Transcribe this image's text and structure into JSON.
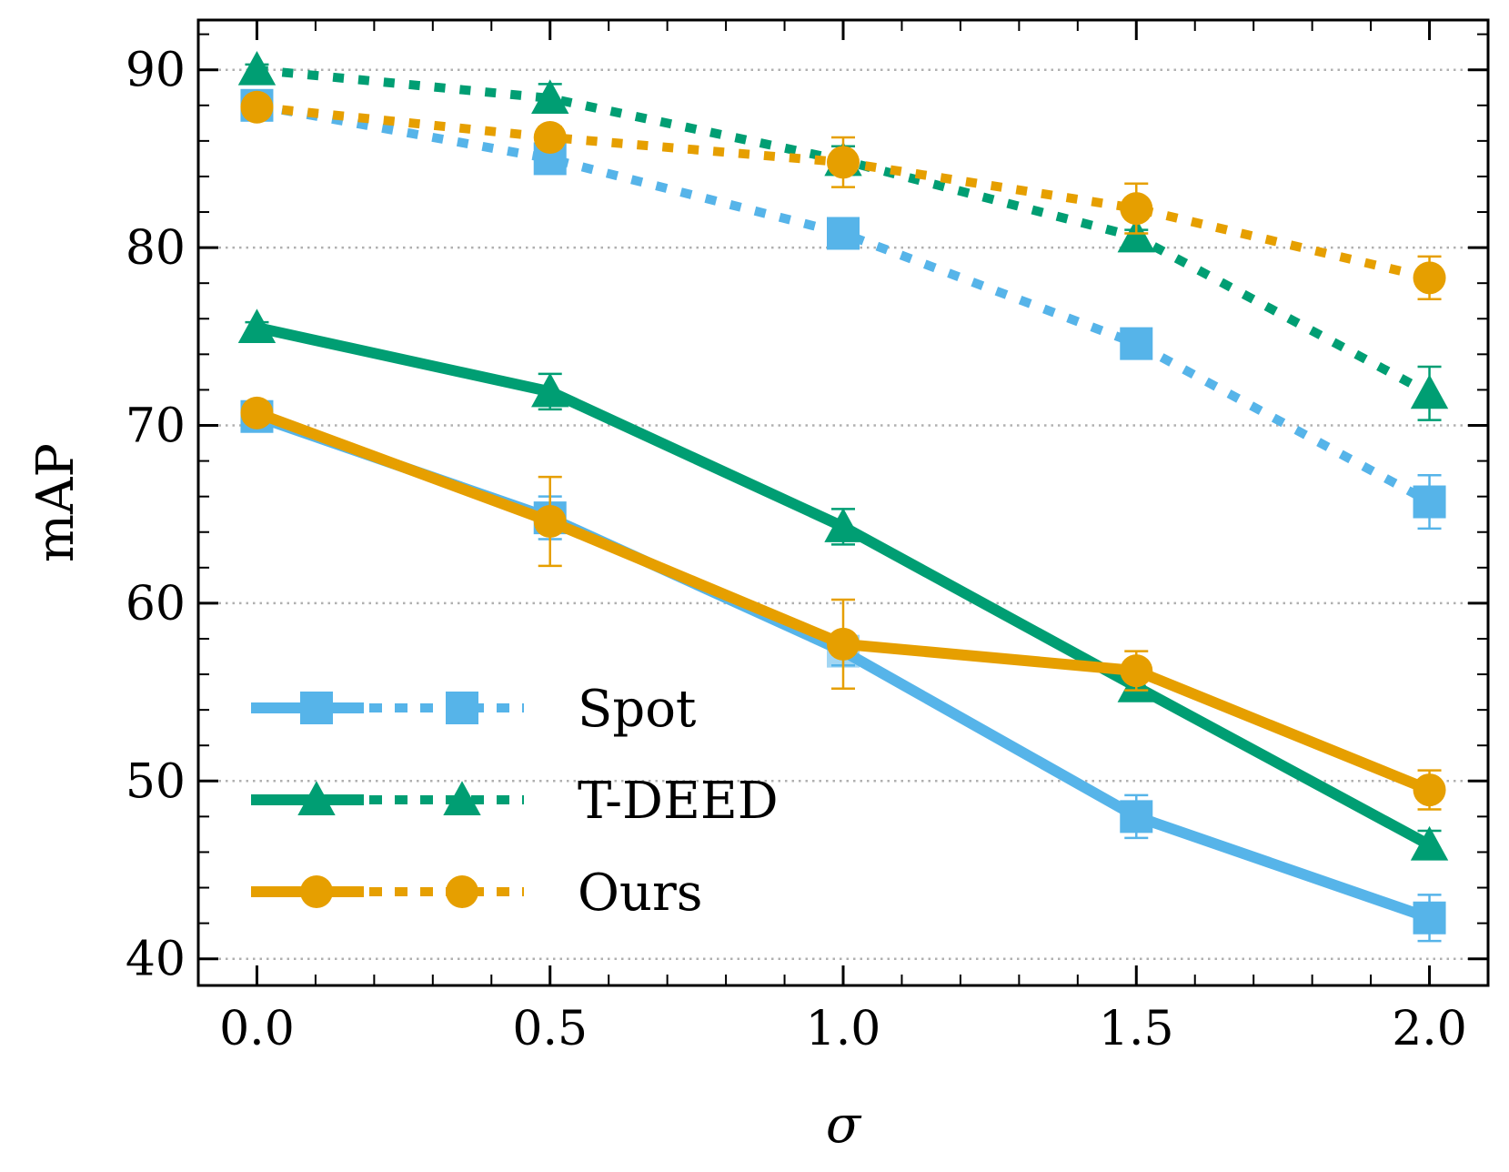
{
  "chart_data": {
    "type": "line",
    "title": "",
    "xlabel": "σ",
    "ylabel": "mAP",
    "xlim": [
      -0.1,
      2.1
    ],
    "ylim": [
      38.5,
      92.8
    ],
    "x": [
      0.0,
      0.5,
      1.0,
      1.5,
      2.0
    ],
    "xticks": [
      0.0,
      0.5,
      1.0,
      1.5,
      2.0
    ],
    "xtick_labels": [
      "0.0",
      "0.5",
      "1.0",
      "1.5",
      "2.0"
    ],
    "yticks": [
      40,
      50,
      60,
      70,
      80,
      90
    ],
    "ytick_labels": [
      "40",
      "50",
      "60",
      "70",
      "80",
      "90"
    ],
    "grid": "horizontal dotted",
    "legend_position": "lower-left",
    "series": [
      {
        "name": "Spot",
        "method": "Spot",
        "style": "dotted",
        "marker": "square",
        "color": "#56B4E9",
        "values": [
          88.0,
          85.0,
          80.8,
          74.6,
          65.7
        ],
        "err": [
          0.3,
          0.4,
          0.5,
          0.4,
          1.5
        ]
      },
      {
        "name": "T-DEED",
        "method": "T-DEED",
        "style": "dotted",
        "marker": "triangle",
        "color": "#009E73",
        "values": [
          90.0,
          88.4,
          84.9,
          80.6,
          71.8
        ],
        "err": [
          0.3,
          0.8,
          0.8,
          0.4,
          1.5
        ]
      },
      {
        "name": "Ours",
        "method": "Ours",
        "style": "dotted",
        "marker": "circle",
        "color": "#E69F00",
        "values": [
          87.9,
          86.2,
          84.8,
          82.2,
          78.3
        ],
        "err": [
          0.3,
          0.6,
          1.4,
          1.4,
          1.2
        ]
      },
      {
        "name": "Spot",
        "method": "Spot",
        "style": "solid",
        "marker": "square",
        "color": "#56B4E9",
        "values": [
          70.5,
          64.8,
          57.3,
          48.0,
          42.3
        ],
        "err": [
          0.3,
          1.2,
          0.8,
          1.2,
          1.3
        ]
      },
      {
        "name": "T-DEED",
        "method": "T-DEED",
        "style": "solid",
        "marker": "triangle",
        "color": "#009E73",
        "values": [
          75.5,
          71.9,
          64.3,
          55.3,
          46.4
        ],
        "err": [
          0.3,
          1.0,
          1.0,
          0.7,
          0.8
        ]
      },
      {
        "name": "Ours",
        "method": "Ours",
        "style": "solid",
        "marker": "circle",
        "color": "#E69F00",
        "values": [
          70.7,
          64.6,
          57.7,
          56.2,
          49.5
        ],
        "err": [
          0.3,
          2.5,
          2.5,
          1.1,
          1.1
        ]
      }
    ],
    "legend": [
      {
        "label": "Spot",
        "color": "#56B4E9",
        "marker": "square"
      },
      {
        "label": "T-DEED",
        "color": "#009E73",
        "marker": "triangle"
      },
      {
        "label": "Ours",
        "color": "#E69F00",
        "marker": "circle"
      }
    ]
  }
}
